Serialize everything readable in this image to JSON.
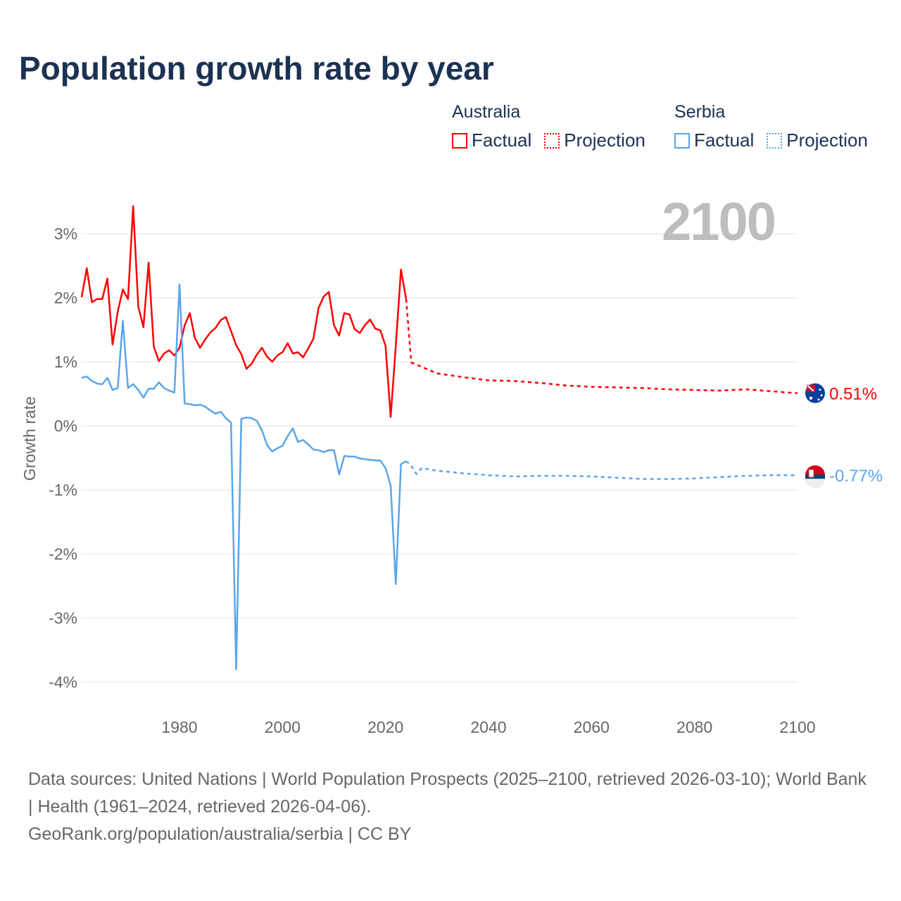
{
  "title": "Population growth rate by year",
  "legend": {
    "groups": [
      {
        "country": "Australia",
        "factual": "Factual",
        "projection": "Projection",
        "color": "#ff0000"
      },
      {
        "country": "Serbia",
        "factual": "Factual",
        "projection": "Projection",
        "color": "#5aa5ea"
      }
    ]
  },
  "current_year_label": "2100",
  "footer": {
    "sources": "Data sources: United Nations | World Population Prospects (2025–2100, retrieved 2026-03-10); World Bank | Health (1961–2024, retrieved 2026-04-06).",
    "credit": "GeoRank.org/population/australia/serbia | CC BY"
  },
  "chart_data": {
    "type": "line",
    "title": "Population growth rate by year",
    "xlabel": "",
    "ylabel": "Growth rate",
    "xlim": [
      1961,
      2100
    ],
    "ylim": [
      -4.3,
      3.6
    ],
    "x_ticks": [
      1980,
      2000,
      2020,
      2040,
      2060,
      2080,
      2100
    ],
    "y_ticks": [
      3,
      2,
      1,
      0,
      -1,
      -2,
      -3,
      -4
    ],
    "y_tick_labels": [
      "3%",
      "2%",
      "1%",
      "0%",
      "-1%",
      "-2%",
      "-3%",
      "-4%"
    ],
    "grid": true,
    "legend_position": "top-right",
    "series": [
      {
        "name": "Australia",
        "color": "#ff0000",
        "end_label": "0.51%",
        "factual_start_year": 1961,
        "factual": [
          2.01,
          2.46,
          1.93,
          1.98,
          1.98,
          2.3,
          1.27,
          1.78,
          2.13,
          1.98,
          3.43,
          1.86,
          1.54,
          2.55,
          1.24,
          1.01,
          1.13,
          1.18,
          1.1,
          1.22,
          1.57,
          1.76,
          1.37,
          1.22,
          1.35,
          1.46,
          1.53,
          1.65,
          1.7,
          1.48,
          1.26,
          1.12,
          0.89,
          0.97,
          1.11,
          1.22,
          1.08,
          1.0,
          1.1,
          1.15,
          1.29,
          1.13,
          1.15,
          1.07,
          1.21,
          1.36,
          1.84,
          2.02,
          2.09,
          1.57,
          1.41,
          1.76,
          1.74,
          1.51,
          1.45,
          1.57,
          1.66,
          1.52,
          1.49,
          1.25,
          0.14,
          1.25,
          2.44,
          1.98
        ],
        "projection": [
          [
            2024,
            1.98
          ],
          [
            2025,
            0.99
          ],
          [
            2030,
            0.82
          ],
          [
            2035,
            0.76
          ],
          [
            2040,
            0.71
          ],
          [
            2045,
            0.7
          ],
          [
            2050,
            0.67
          ],
          [
            2055,
            0.63
          ],
          [
            2060,
            0.61
          ],
          [
            2065,
            0.6
          ],
          [
            2070,
            0.59
          ],
          [
            2075,
            0.57
          ],
          [
            2080,
            0.56
          ],
          [
            2085,
            0.55
          ],
          [
            2090,
            0.57
          ],
          [
            2095,
            0.54
          ],
          [
            2100,
            0.51
          ]
        ]
      },
      {
        "name": "Serbia",
        "color": "#5aa5ea",
        "end_label": "-0.77%",
        "factual_start_year": 1961,
        "factual": [
          0.75,
          0.77,
          0.7,
          0.66,
          0.65,
          0.75,
          0.56,
          0.59,
          1.64,
          0.59,
          0.65,
          0.56,
          0.44,
          0.58,
          0.58,
          0.68,
          0.59,
          0.55,
          0.52,
          2.21,
          0.35,
          0.34,
          0.32,
          0.33,
          0.3,
          0.24,
          0.19,
          0.22,
          0.12,
          0.05,
          -3.8,
          0.11,
          0.13,
          0.12,
          0.08,
          -0.07,
          -0.3,
          -0.4,
          -0.35,
          -0.31,
          -0.16,
          -0.04,
          -0.25,
          -0.22,
          -0.29,
          -0.37,
          -0.38,
          -0.41,
          -0.38,
          -0.38,
          -0.76,
          -0.47,
          -0.48,
          -0.48,
          -0.51,
          -0.52,
          -0.53,
          -0.54,
          -0.54,
          -0.66,
          -0.93,
          -2.47,
          -0.6,
          -0.55
        ],
        "projection": [
          [
            2024,
            -0.55
          ],
          [
            2025,
            -0.62
          ],
          [
            2026,
            -0.75
          ],
          [
            2027,
            -0.66
          ],
          [
            2030,
            -0.7
          ],
          [
            2035,
            -0.74
          ],
          [
            2040,
            -0.77
          ],
          [
            2045,
            -0.79
          ],
          [
            2050,
            -0.78
          ],
          [
            2055,
            -0.78
          ],
          [
            2060,
            -0.79
          ],
          [
            2065,
            -0.81
          ],
          [
            2070,
            -0.83
          ],
          [
            2075,
            -0.83
          ],
          [
            2080,
            -0.82
          ],
          [
            2085,
            -0.8
          ],
          [
            2090,
            -0.78
          ],
          [
            2095,
            -0.77
          ],
          [
            2100,
            -0.77
          ]
        ]
      }
    ]
  }
}
